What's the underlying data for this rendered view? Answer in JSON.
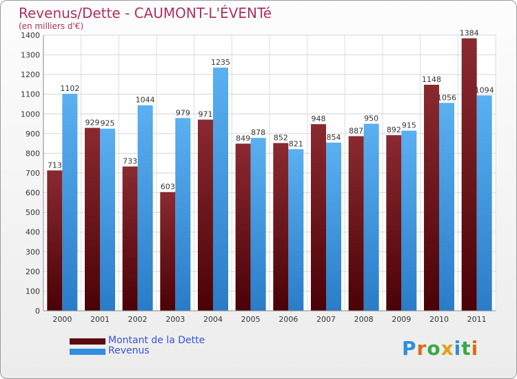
{
  "title": "Revenus/Dette - CAUMONT-L'ÉVENTé",
  "subtitle": "(en milliers d'€)",
  "colors": {
    "dette": "#7a1d22",
    "revenus": "#3ea0e8",
    "title": "#b0305a",
    "legend_text": "#3a4fe0"
  },
  "legend": [
    {
      "label": "Montant de la Dette",
      "color": "#5a0a10"
    },
    {
      "label": "Revenus",
      "color": "#2f8ee0"
    }
  ],
  "logo": {
    "letters": [
      "P",
      "r",
      "o",
      "x",
      "i",
      "t",
      "i"
    ],
    "colors": [
      "#2e8fd8",
      "#e06a1a",
      "#3aa84a",
      "#e0a01a",
      "#2e8fd8",
      "#3aa84a",
      "#e06a1a"
    ]
  },
  "chart_data": {
    "type": "bar",
    "categories": [
      "2000",
      "2001",
      "2002",
      "2003",
      "2004",
      "2005",
      "2006",
      "2007",
      "2008",
      "2009",
      "2010",
      "2011"
    ],
    "series": [
      {
        "name": "Montant de la Dette",
        "values": [
          713,
          929,
          733,
          603,
          971,
          849,
          852,
          948,
          887,
          892,
          1148,
          1384
        ]
      },
      {
        "name": "Revenus",
        "values": [
          1102,
          925,
          1044,
          979,
          1235,
          878,
          821,
          854,
          950,
          915,
          1056,
          1094
        ]
      }
    ],
    "title": "Revenus/Dette - CAUMONT-L'ÉVENTé",
    "ylabel": "(en milliers d'€)",
    "ylim": [
      0,
      1400
    ],
    "yticks": [
      0,
      100,
      200,
      300,
      400,
      500,
      600,
      700,
      800,
      900,
      1000,
      1100,
      1200,
      1300,
      1400
    ],
    "grid": true,
    "legend_position": "bottom-left"
  }
}
